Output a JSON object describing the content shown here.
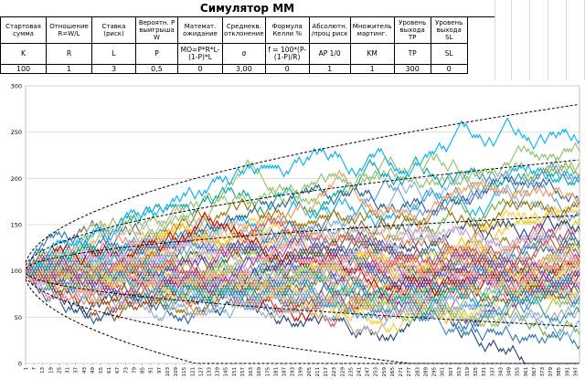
{
  "sheet": {
    "title": "Симулятор ММ"
  },
  "params": [
    {
      "header": "Стартовая сумма",
      "symbol": "K",
      "value": "100"
    },
    {
      "header": "Отношение R=W/L",
      "symbol": "R",
      "value": "1"
    },
    {
      "header": "Ставка (риск)",
      "symbol": "L",
      "value": "3"
    },
    {
      "header": "Вероятн. Р выигрыша W",
      "symbol": "P",
      "value": "0,5"
    },
    {
      "header": "Математ. ожидание",
      "symbol": "MO=P*R*L-(1-P)*L",
      "value": "0"
    },
    {
      "header": "Среднекв. отклонение",
      "symbol": "σ",
      "value": "3,00"
    },
    {
      "header": "Формула Келли %",
      "symbol": "f = 100*(P-(1-P)/R)",
      "value": "0"
    },
    {
      "header": "Абсолютн. /проц риск",
      "symbol": "AP 1/0",
      "value": "1"
    },
    {
      "header": "Множитель мартинг.",
      "symbol": "KM",
      "value": "1"
    },
    {
      "header": "Уровень выхода TP",
      "symbol": "TP",
      "value": "300"
    },
    {
      "header": "Уровень выхода SL",
      "symbol": "SL",
      "value": "0"
    }
  ],
  "chart_data": {
    "type": "line",
    "ylim": [
      0,
      300
    ],
    "y_ticks": [
      0,
      50,
      100,
      150,
      200,
      250,
      300
    ],
    "x_ticks": [
      "1",
      "7",
      "13",
      "19",
      "25",
      "31",
      "37",
      "43",
      "49",
      "55",
      "61",
      "67",
      "73",
      "79",
      "85",
      "91",
      "97",
      "103",
      "109",
      "115",
      "121",
      "127",
      "133",
      "139",
      "145",
      "151",
      "157",
      "163",
      "169",
      "175",
      "181",
      "187",
      "193",
      "199",
      "205",
      "211",
      "217",
      "223",
      "229",
      "235",
      "241",
      "247",
      "253",
      "259",
      "265",
      "271",
      "277",
      "283",
      "289",
      "295",
      "301",
      "307",
      "313",
      "319",
      "325",
      "331",
      "337",
      "343",
      "349",
      "355",
      "361",
      "367",
      "373",
      "379",
      "385",
      "391",
      "397"
    ],
    "xlim": [
      1,
      400
    ],
    "grid": "horizontal",
    "series_colors": [
      "#4472c4",
      "#ed7d31",
      "#a5a5a5",
      "#ffc000",
      "#5b9bd5",
      "#70ad47",
      "#264478",
      "#9e480e",
      "#636363",
      "#997300",
      "#255e91",
      "#43682b",
      "#698ed0",
      "#f1975a",
      "#b7b7b7",
      "#ffcd33",
      "#7cafdd",
      "#8cc168",
      "#2e75b6",
      "#c00000",
      "#7030a0",
      "#00b0f0",
      "#92d050",
      "#ff7c80",
      "#c9a0dc",
      "#00a3a3",
      "#e2a33b",
      "#8e3b98",
      "#3c8dbc",
      "#d9534f"
    ],
    "envelopes": [
      {
        "style": "dashed",
        "sigma_multiple": 1
      },
      {
        "style": "dashed",
        "sigma_multiple": 2
      },
      {
        "style": "dashed",
        "sigma_multiple": 3
      },
      {
        "style": "dashed",
        "sigma_multiple": -1
      },
      {
        "style": "dashed",
        "sigma_multiple": -2
      },
      {
        "style": "dashed",
        "sigma_multiple": -3
      }
    ],
    "paths": 60,
    "start": 100,
    "step": 3
  }
}
